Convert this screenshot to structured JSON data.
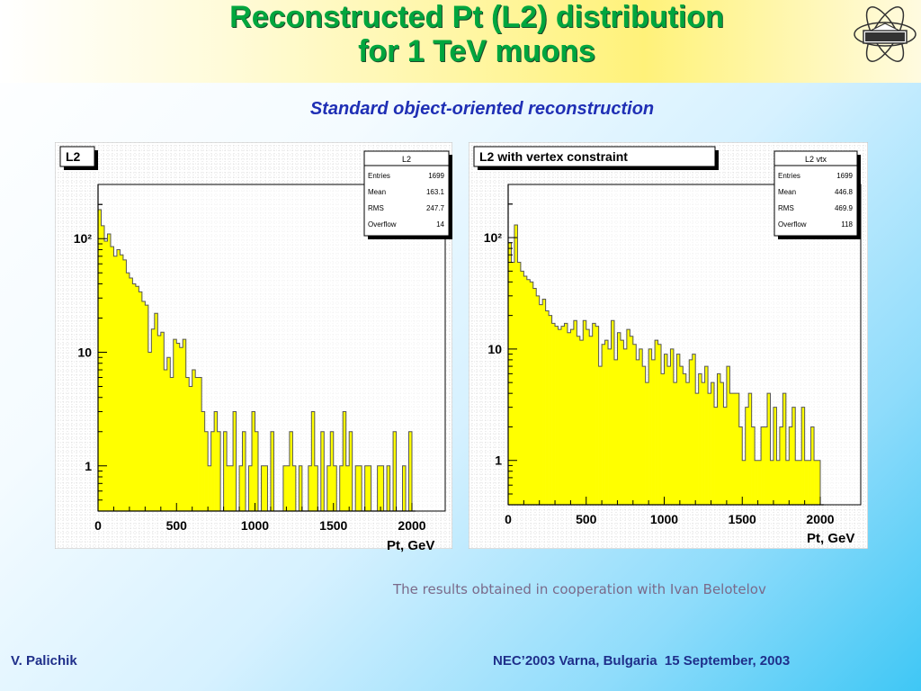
{
  "slide": {
    "title_line1": "Reconstructed Pt (L2) distribution",
    "title_line2": "for 1 TeV muons",
    "subtitle": "Standard object-oriented reconstruction",
    "cooperation_note": "The results obtained in cooperation with Ivan Belotelov",
    "author": "V. Palichik",
    "conference": "NEC’2003 Varna, Bulgaria  15 September, 2003"
  },
  "colors": {
    "title_green": "#00a63e",
    "subtitle_blue": "#1f2fb5",
    "histogram_fill": "#ffff00",
    "footer_blue": "#1f2f8a"
  },
  "chart_data": [
    {
      "type": "bar",
      "title": "L2",
      "xlabel": "Pt, GeV",
      "ylabel": "",
      "log_y": true,
      "xlim": [
        0,
        2000
      ],
      "ylim": [
        0.4,
        300
      ],
      "x_ticks": [
        "0",
        "500",
        "1000",
        "1500",
        "2000"
      ],
      "y_ticks": [
        {
          "value": 1,
          "label": "1"
        },
        {
          "value": 10,
          "label": "10"
        },
        {
          "value": 100,
          "label": "10²"
        }
      ],
      "grid": true,
      "bin_width": 20,
      "stats": {
        "box_title": "L2",
        "rows": [
          {
            "label": "Entries",
            "value": "1699"
          },
          {
            "label": "Mean",
            "value": "163.1"
          },
          {
            "label": "RMS",
            "value": "247.7"
          },
          {
            "label": "Overflow",
            "value": "14"
          }
        ]
      },
      "values": [
        180,
        130,
        95,
        110,
        85,
        70,
        80,
        72,
        65,
        50,
        45,
        40,
        38,
        34,
        28,
        26,
        10,
        16,
        22,
        14,
        15,
        7,
        9,
        6,
        13,
        12,
        11,
        13,
        6,
        5,
        7,
        6,
        6,
        3,
        2,
        1,
        2,
        3,
        2,
        0,
        2,
        1,
        1,
        3,
        0,
        1,
        2,
        0,
        1,
        3,
        2,
        0,
        1,
        1,
        0,
        2,
        0,
        0,
        0,
        1,
        1,
        2,
        1,
        0,
        1,
        0,
        0,
        1,
        3,
        1,
        0,
        2,
        0,
        1,
        2,
        1,
        0,
        1,
        3,
        1,
        2,
        0,
        1,
        1,
        0,
        1,
        1,
        0,
        0,
        1,
        1,
        0,
        1,
        0,
        2,
        0,
        0,
        1,
        0,
        2
      ]
    },
    {
      "type": "bar",
      "title": "L2 with vertex constraint",
      "xlabel": "Pt, GeV",
      "ylabel": "",
      "log_y": true,
      "xlim": [
        0,
        2000
      ],
      "ylim": [
        0.4,
        300
      ],
      "x_ticks": [
        "0",
        "500",
        "1000",
        "1500",
        "2000"
      ],
      "y_ticks": [
        {
          "value": 1,
          "label": "1"
        },
        {
          "value": 10,
          "label": "10"
        },
        {
          "value": 100,
          "label": "10²"
        }
      ],
      "grid": true,
      "bin_width": 20,
      "stats": {
        "box_title": "L2 vtx",
        "rows": [
          {
            "label": "Entries",
            "value": "1699"
          },
          {
            "label": "Mean",
            "value": "446.8"
          },
          {
            "label": "RMS",
            "value": "469.9"
          },
          {
            "label": "Overflow",
            "value": "118"
          }
        ]
      },
      "values": [
        90,
        60,
        130,
        60,
        50,
        45,
        42,
        40,
        35,
        30,
        25,
        28,
        22,
        20,
        17,
        16,
        15,
        16,
        17,
        14,
        15,
        18,
        13,
        12,
        18,
        15,
        13,
        17,
        16,
        7,
        11,
        12,
        10,
        18,
        8,
        14,
        12,
        10,
        15,
        13,
        11,
        8,
        10,
        7,
        5,
        10,
        8,
        12,
        11,
        6,
        9,
        7,
        10,
        5,
        9,
        7,
        6,
        5,
        8,
        9,
        4,
        6,
        5,
        7,
        4,
        5,
        3,
        6,
        5,
        3,
        7,
        4,
        4,
        4,
        2,
        1,
        3,
        4,
        2,
        1,
        1,
        2,
        2,
        4,
        1,
        3,
        1,
        2,
        4,
        1,
        2,
        3,
        1,
        1,
        3,
        1,
        1,
        2,
        1,
        1
      ]
    }
  ]
}
